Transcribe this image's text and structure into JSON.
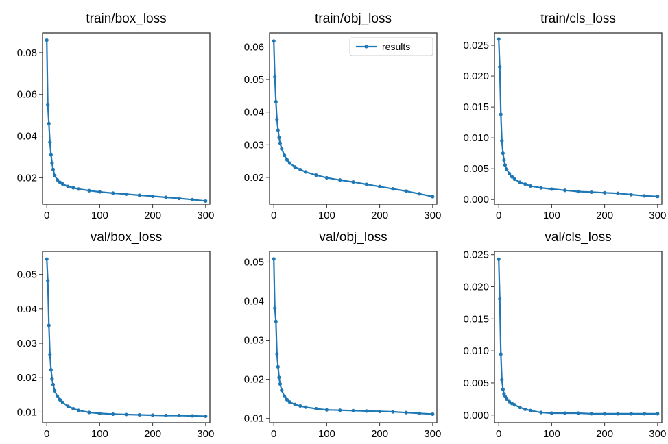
{
  "chart_data": [
    {
      "type": "line",
      "title": "train/box_loss",
      "xlabel": "",
      "ylabel": "",
      "xlim": [
        -8,
        308
      ],
      "ylim": [
        0.0073,
        0.0895
      ],
      "xticks": [
        0,
        100,
        200,
        300
      ],
      "xtick_labels": [
        "0",
        "100",
        "200",
        "300"
      ],
      "yticks": [
        0.02,
        0.04,
        0.06,
        0.08
      ],
      "ytick_labels": [
        "0.02",
        "0.04",
        "0.06",
        "0.08"
      ],
      "legend": null,
      "color": "#1f77b4",
      "series": [
        {
          "x": [
            0,
            2,
            4,
            6,
            8,
            10,
            12,
            15,
            20,
            25,
            30,
            40,
            50,
            60,
            80,
            100,
            125,
            150,
            175,
            200,
            225,
            250,
            275,
            300
          ],
          "y": [
            0.086,
            0.055,
            0.046,
            0.037,
            0.031,
            0.027,
            0.024,
            0.021,
            0.019,
            0.0178,
            0.017,
            0.0158,
            0.0152,
            0.0146,
            0.0138,
            0.0132,
            0.0126,
            0.0121,
            0.0116,
            0.0111,
            0.0106,
            0.0101,
            0.0095,
            0.0088
          ]
        }
      ]
    },
    {
      "type": "line",
      "title": "train/obj_loss",
      "xlabel": "",
      "ylabel": "",
      "xlim": [
        -8,
        308
      ],
      "ylim": [
        0.0118,
        0.0643
      ],
      "xticks": [
        0,
        100,
        200,
        300
      ],
      "xtick_labels": [
        "0",
        "100",
        "200",
        "300"
      ],
      "yticks": [
        0.02,
        0.03,
        0.04,
        0.05,
        0.06
      ],
      "ytick_labels": [
        "0.02",
        "0.03",
        "0.04",
        "0.05",
        "0.06"
      ],
      "legend": {
        "entries": [
          "results"
        ],
        "location": "top-right"
      },
      "color": "#1f77b4",
      "series": [
        {
          "name": "results",
          "x": [
            0,
            2,
            4,
            6,
            8,
            10,
            12,
            15,
            20,
            25,
            30,
            40,
            50,
            60,
            80,
            100,
            125,
            150,
            175,
            200,
            225,
            250,
            275,
            300
          ],
          "y": [
            0.0618,
            0.0508,
            0.0432,
            0.0378,
            0.0345,
            0.0322,
            0.0305,
            0.0288,
            0.0268,
            0.0254,
            0.0244,
            0.0232,
            0.0224,
            0.0217,
            0.0207,
            0.0199,
            0.0192,
            0.0186,
            0.0179,
            0.0172,
            0.0165,
            0.0158,
            0.015,
            0.0141
          ]
        }
      ]
    },
    {
      "type": "line",
      "title": "train/cls_loss",
      "xlabel": "",
      "ylabel": "",
      "xlim": [
        -8,
        308
      ],
      "ylim": [
        -0.00075,
        0.027
      ],
      "xticks": [
        0,
        100,
        200,
        300
      ],
      "xtick_labels": [
        "0",
        "100",
        "200",
        "300"
      ],
      "yticks": [
        0.0,
        0.005,
        0.01,
        0.015,
        0.02,
        0.025
      ],
      "ytick_labels": [
        "0.000",
        "0.005",
        "0.010",
        "0.015",
        "0.020",
        "0.025"
      ],
      "legend": null,
      "color": "#1f77b4",
      "series": [
        {
          "x": [
            0,
            2,
            4,
            6,
            8,
            10,
            12,
            15,
            20,
            25,
            30,
            40,
            50,
            60,
            80,
            100,
            125,
            150,
            175,
            200,
            225,
            250,
            275,
            300
          ],
          "y": [
            0.026,
            0.0215,
            0.0138,
            0.0095,
            0.0075,
            0.0064,
            0.0056,
            0.0049,
            0.0042,
            0.0037,
            0.0033,
            0.0028,
            0.0025,
            0.0022,
            0.0019,
            0.0017,
            0.0015,
            0.0013,
            0.0012,
            0.0011,
            0.001,
            0.0008,
            0.0006,
            0.0005
          ]
        }
      ]
    },
    {
      "type": "line",
      "title": "val/box_loss",
      "xlabel": "",
      "ylabel": "",
      "xlim": [
        -8,
        308
      ],
      "ylim": [
        0.0069,
        0.0567
      ],
      "xticks": [
        0,
        100,
        200,
        300
      ],
      "xtick_labels": [
        "0",
        "100",
        "200",
        "300"
      ],
      "yticks": [
        0.01,
        0.02,
        0.03,
        0.04,
        0.05
      ],
      "ytick_labels": [
        "0.01",
        "0.02",
        "0.03",
        "0.04",
        "0.05"
      ],
      "legend": null,
      "color": "#1f77b4",
      "series": [
        {
          "x": [
            0,
            2,
            4,
            6,
            8,
            10,
            12,
            15,
            20,
            25,
            30,
            40,
            50,
            60,
            80,
            100,
            125,
            150,
            175,
            200,
            225,
            250,
            275,
            300
          ],
          "y": [
            0.0545,
            0.0482,
            0.0352,
            0.0268,
            0.0223,
            0.0197,
            0.018,
            0.0162,
            0.0146,
            0.0136,
            0.0128,
            0.0117,
            0.011,
            0.0105,
            0.0099,
            0.0096,
            0.0094,
            0.0093,
            0.0092,
            0.0091,
            0.009,
            0.009,
            0.0089,
            0.0088
          ]
        }
      ]
    },
    {
      "type": "line",
      "title": "val/obj_loss",
      "xlabel": "",
      "ylabel": "",
      "xlim": [
        -8,
        308
      ],
      "ylim": [
        0.0089,
        0.0527
      ],
      "xticks": [
        0,
        100,
        200,
        300
      ],
      "xtick_labels": [
        "0",
        "100",
        "200",
        "300"
      ],
      "yticks": [
        0.01,
        0.02,
        0.03,
        0.04,
        0.05
      ],
      "ytick_labels": [
        "0.01",
        "0.02",
        "0.03",
        "0.04",
        "0.05"
      ],
      "legend": null,
      "color": "#1f77b4",
      "series": [
        {
          "x": [
            0,
            2,
            4,
            6,
            8,
            10,
            12,
            15,
            20,
            25,
            30,
            40,
            50,
            60,
            80,
            100,
            125,
            150,
            175,
            200,
            225,
            250,
            275,
            300
          ],
          "y": [
            0.0508,
            0.0382,
            0.0348,
            0.0265,
            0.0232,
            0.0205,
            0.0188,
            0.0172,
            0.0157,
            0.0148,
            0.0142,
            0.0136,
            0.0132,
            0.0129,
            0.0125,
            0.0122,
            0.0121,
            0.012,
            0.0119,
            0.0118,
            0.0117,
            0.0115,
            0.0113,
            0.0111
          ]
        }
      ]
    },
    {
      "type": "line",
      "title": "val/cls_loss",
      "xlabel": "",
      "ylabel": "",
      "xlim": [
        -8,
        308
      ],
      "ylim": [
        -0.0012,
        0.0255
      ],
      "xticks": [
        0,
        100,
        200,
        300
      ],
      "xtick_labels": [
        "0",
        "100",
        "200",
        "300"
      ],
      "yticks": [
        0.0,
        0.005,
        0.01,
        0.015,
        0.02,
        0.025
      ],
      "ytick_labels": [
        "0.000",
        "0.005",
        "0.010",
        "0.015",
        "0.020",
        "0.025"
      ],
      "legend": null,
      "color": "#1f77b4",
      "series": [
        {
          "x": [
            0,
            2,
            4,
            6,
            8,
            10,
            12,
            15,
            20,
            25,
            30,
            40,
            50,
            60,
            80,
            100,
            125,
            150,
            175,
            200,
            225,
            250,
            275,
            300
          ],
          "y": [
            0.0243,
            0.0181,
            0.0095,
            0.0055,
            0.004,
            0.0033,
            0.0029,
            0.0025,
            0.0021,
            0.0018,
            0.0016,
            0.0012,
            0.0009,
            0.0007,
            0.0004,
            0.0003,
            0.0003,
            0.0003,
            0.0002,
            0.0002,
            0.0002,
            0.0002,
            0.0002,
            0.0002
          ]
        }
      ]
    }
  ]
}
